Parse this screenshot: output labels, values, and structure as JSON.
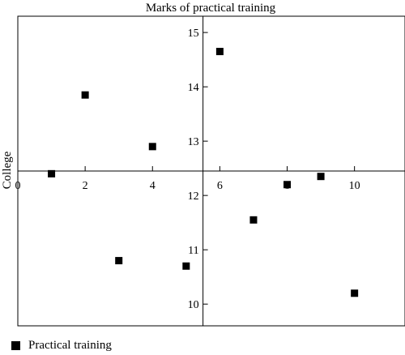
{
  "chart_data": {
    "type": "scatter",
    "title": "Marks of practical training",
    "ylabel": "College",
    "xlabel": "",
    "xlim": [
      0,
      11.5
    ],
    "ylim": [
      9.6,
      15.3
    ],
    "x_origin_at_y": 12.45,
    "y_axis_at_x": 5.5,
    "x_ticks": [
      0,
      2,
      4,
      6,
      8,
      10
    ],
    "y_ticks": [
      10,
      11,
      12,
      13,
      14,
      15
    ],
    "grid": false,
    "legend_position": "bottom-left",
    "series": [
      {
        "name": "Practical training",
        "color": "#000000",
        "marker": "square",
        "points": [
          {
            "x": 1,
            "y": 12.4
          },
          {
            "x": 2,
            "y": 13.85
          },
          {
            "x": 3,
            "y": 10.8
          },
          {
            "x": 4,
            "y": 12.9
          },
          {
            "x": 5,
            "y": 10.7
          },
          {
            "x": 6,
            "y": 14.65
          },
          {
            "x": 7,
            "y": 11.55
          },
          {
            "x": 8,
            "y": 12.2
          },
          {
            "x": 9,
            "y": 12.35
          },
          {
            "x": 10,
            "y": 10.2
          }
        ]
      }
    ]
  }
}
